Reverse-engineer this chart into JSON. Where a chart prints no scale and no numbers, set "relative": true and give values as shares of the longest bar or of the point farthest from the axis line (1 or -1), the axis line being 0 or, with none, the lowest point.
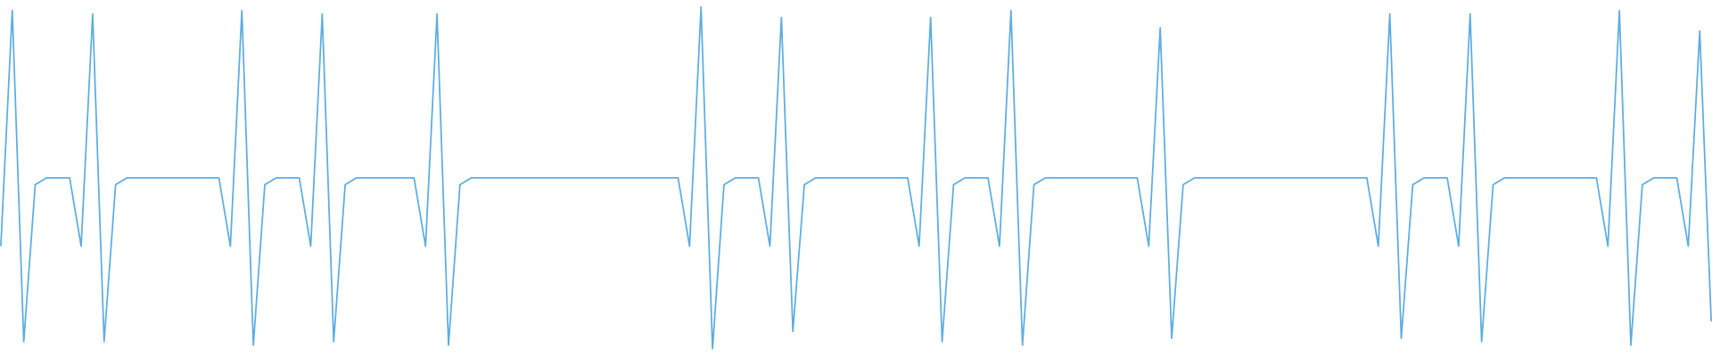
{
  "chart_data": {
    "type": "line",
    "relative": true,
    "categories": [
      null,
      null,
      null,
      null,
      null,
      null,
      null,
      null,
      null,
      null,
      null,
      null,
      null,
      null,
      null,
      null,
      null,
      null,
      null,
      null,
      null,
      null,
      null,
      null,
      null,
      null,
      null,
      null,
      null,
      null,
      null,
      null,
      null,
      null,
      null,
      null,
      null,
      null,
      null,
      null,
      null,
      null,
      null,
      null,
      null,
      null,
      null,
      null,
      null,
      null,
      null,
      null,
      null,
      null,
      null,
      null,
      null,
      null,
      null,
      null,
      null,
      null,
      null,
      null,
      null,
      null,
      null,
      null,
      null,
      null,
      null,
      null,
      null,
      null,
      null,
      null,
      null,
      null,
      null,
      null,
      null,
      null,
      null,
      null,
      null,
      null,
      null,
      null,
      null,
      null,
      null,
      null,
      null,
      null,
      null,
      null,
      null,
      null,
      null,
      null,
      null,
      null,
      null,
      null,
      null,
      null,
      null,
      null,
      null,
      null,
      null,
      null,
      null,
      null,
      null,
      null,
      null,
      null,
      null,
      null,
      null,
      null,
      null,
      null,
      null,
      null,
      null,
      null,
      null,
      null,
      null,
      null,
      null,
      null,
      null,
      null,
      null,
      null,
      null,
      null,
      null,
      null,
      null,
      null,
      null,
      null,
      null,
      null,
      null,
      null
    ],
    "values": [
      0.3,
      0.99,
      0.02,
      0.48,
      0.5,
      0.5,
      0.5,
      0.3,
      0.98,
      0.02,
      0.48,
      0.5,
      0.5,
      0.5,
      0.5,
      0.5,
      0.5,
      0.5,
      0.5,
      0.5,
      0.3,
      0.99,
      0.01,
      0.48,
      0.5,
      0.5,
      0.5,
      0.3,
      0.98,
      0.02,
      0.48,
      0.5,
      0.5,
      0.5,
      0.5,
      0.5,
      0.5,
      0.3,
      0.98,
      0.01,
      0.48,
      0.5,
      0.5,
      0.5,
      0.5,
      0.5,
      0.5,
      0.5,
      0.5,
      0.5,
      0.5,
      0.5,
      0.5,
      0.5,
      0.5,
      0.5,
      0.5,
      0.5,
      0.5,
      0.5,
      0.3,
      1,
      0,
      0.48,
      0.5,
      0.5,
      0.5,
      0.3,
      0.97,
      0.05,
      0.48,
      0.5,
      0.5,
      0.5,
      0.5,
      0.5,
      0.5,
      0.5,
      0.5,
      0.5,
      0.3,
      0.97,
      0.02,
      0.48,
      0.5,
      0.5,
      0.5,
      0.3,
      0.99,
      0.01,
      0.48,
      0.5,
      0.5,
      0.5,
      0.5,
      0.5,
      0.5,
      0.5,
      0.5,
      0.5,
      0.3,
      0.94,
      0.03,
      0.48,
      0.5,
      0.5,
      0.5,
      0.5,
      0.5,
      0.5,
      0.5,
      0.5,
      0.5,
      0.5,
      0.5,
      0.5,
      0.5,
      0.5,
      0.5,
      0.5,
      0.3,
      0.98,
      0.03,
      0.48,
      0.5,
      0.5,
      0.5,
      0.3,
      0.98,
      0.02,
      0.48,
      0.5,
      0.5,
      0.5,
      0.5,
      0.5,
      0.5,
      0.5,
      0.5,
      0.5,
      0.3,
      0.99,
      0.01,
      0.48,
      0.5,
      0.5,
      0.5,
      0.3,
      0.93,
      0.08
    ],
    "color": "#5dade2"
  }
}
